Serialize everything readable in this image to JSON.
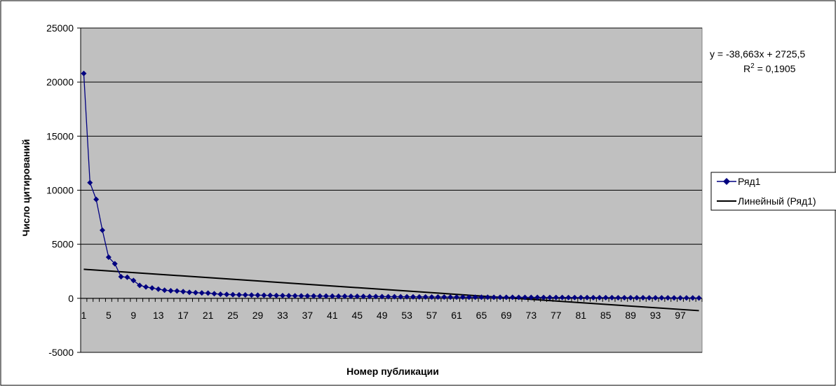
{
  "chart_data": {
    "type": "line",
    "xlabel": "Номер публикации",
    "ylabel": "Число цитирований",
    "ylim": [
      -5000,
      25000
    ],
    "yticks": [
      -5000,
      0,
      5000,
      10000,
      15000,
      20000,
      25000
    ],
    "ytick_labels": [
      "-5000",
      "0",
      "5000",
      "10000",
      "15000",
      "20000",
      "25000"
    ],
    "x_range": [
      1,
      100
    ],
    "xtick_labels": [
      "1",
      "5",
      "9",
      "13",
      "17",
      "21",
      "25",
      "29",
      "33",
      "37",
      "41",
      "45",
      "49",
      "53",
      "57",
      "61",
      "65",
      "69",
      "73",
      "77",
      "81",
      "85",
      "89",
      "93",
      "97"
    ],
    "grid": "horizontal",
    "plot_background": "#c0c0c0",
    "legend_position": "right",
    "series": [
      {
        "name": "Ряд1",
        "color": "#000080",
        "marker": "diamond",
        "x": [
          1,
          2,
          3,
          4,
          5,
          6,
          7,
          8,
          9,
          10,
          11,
          12,
          13,
          14,
          15,
          16,
          17,
          18,
          19,
          20,
          21,
          22,
          23,
          24,
          25,
          26,
          27,
          28,
          29,
          30,
          31,
          32,
          33,
          34,
          35,
          36,
          37,
          38,
          39,
          40,
          41,
          42,
          43,
          44,
          45,
          46,
          47,
          48,
          49,
          50,
          51,
          52,
          53,
          54,
          55,
          56,
          57,
          58,
          59,
          60,
          61,
          62,
          63,
          64,
          65,
          66,
          67,
          68,
          69,
          70,
          71,
          72,
          73,
          74,
          75,
          76,
          77,
          78,
          79,
          80,
          81,
          82,
          83,
          84,
          85,
          86,
          87,
          88,
          89,
          90,
          91,
          92,
          93,
          94,
          95,
          96,
          97,
          98,
          99,
          100
        ],
        "values": [
          20800,
          10700,
          9150,
          6300,
          3800,
          3200,
          2000,
          1950,
          1650,
          1200,
          1050,
          950,
          850,
          750,
          700,
          680,
          620,
          560,
          520,
          500,
          480,
          430,
          380,
          360,
          340,
          320,
          310,
          300,
          290,
          280,
          270,
          260,
          250,
          240,
          230,
          225,
          220,
          215,
          210,
          205,
          200,
          195,
          190,
          185,
          180,
          175,
          170,
          165,
          160,
          155,
          150,
          145,
          140,
          135,
          130,
          125,
          120,
          118,
          115,
          112,
          110,
          108,
          106,
          104,
          102,
          100,
          98,
          96,
          94,
          92,
          90,
          88,
          86,
          84,
          82,
          80,
          78,
          76,
          74,
          72,
          70,
          68,
          66,
          64,
          62,
          60,
          58,
          56,
          54,
          52,
          50,
          48,
          46,
          44,
          42,
          40,
          38,
          36,
          34,
          32
        ]
      },
      {
        "name": "Линейный (Ряд1)",
        "color": "#000000",
        "trendline": {
          "slope": -38.663,
          "intercept": 2725.5
        }
      }
    ],
    "annotations": {
      "equation": "y = -38,663x + 2725,5",
      "r2_label": "R",
      "r2_exp": "2",
      "r2_value": " = 0,1905"
    }
  }
}
